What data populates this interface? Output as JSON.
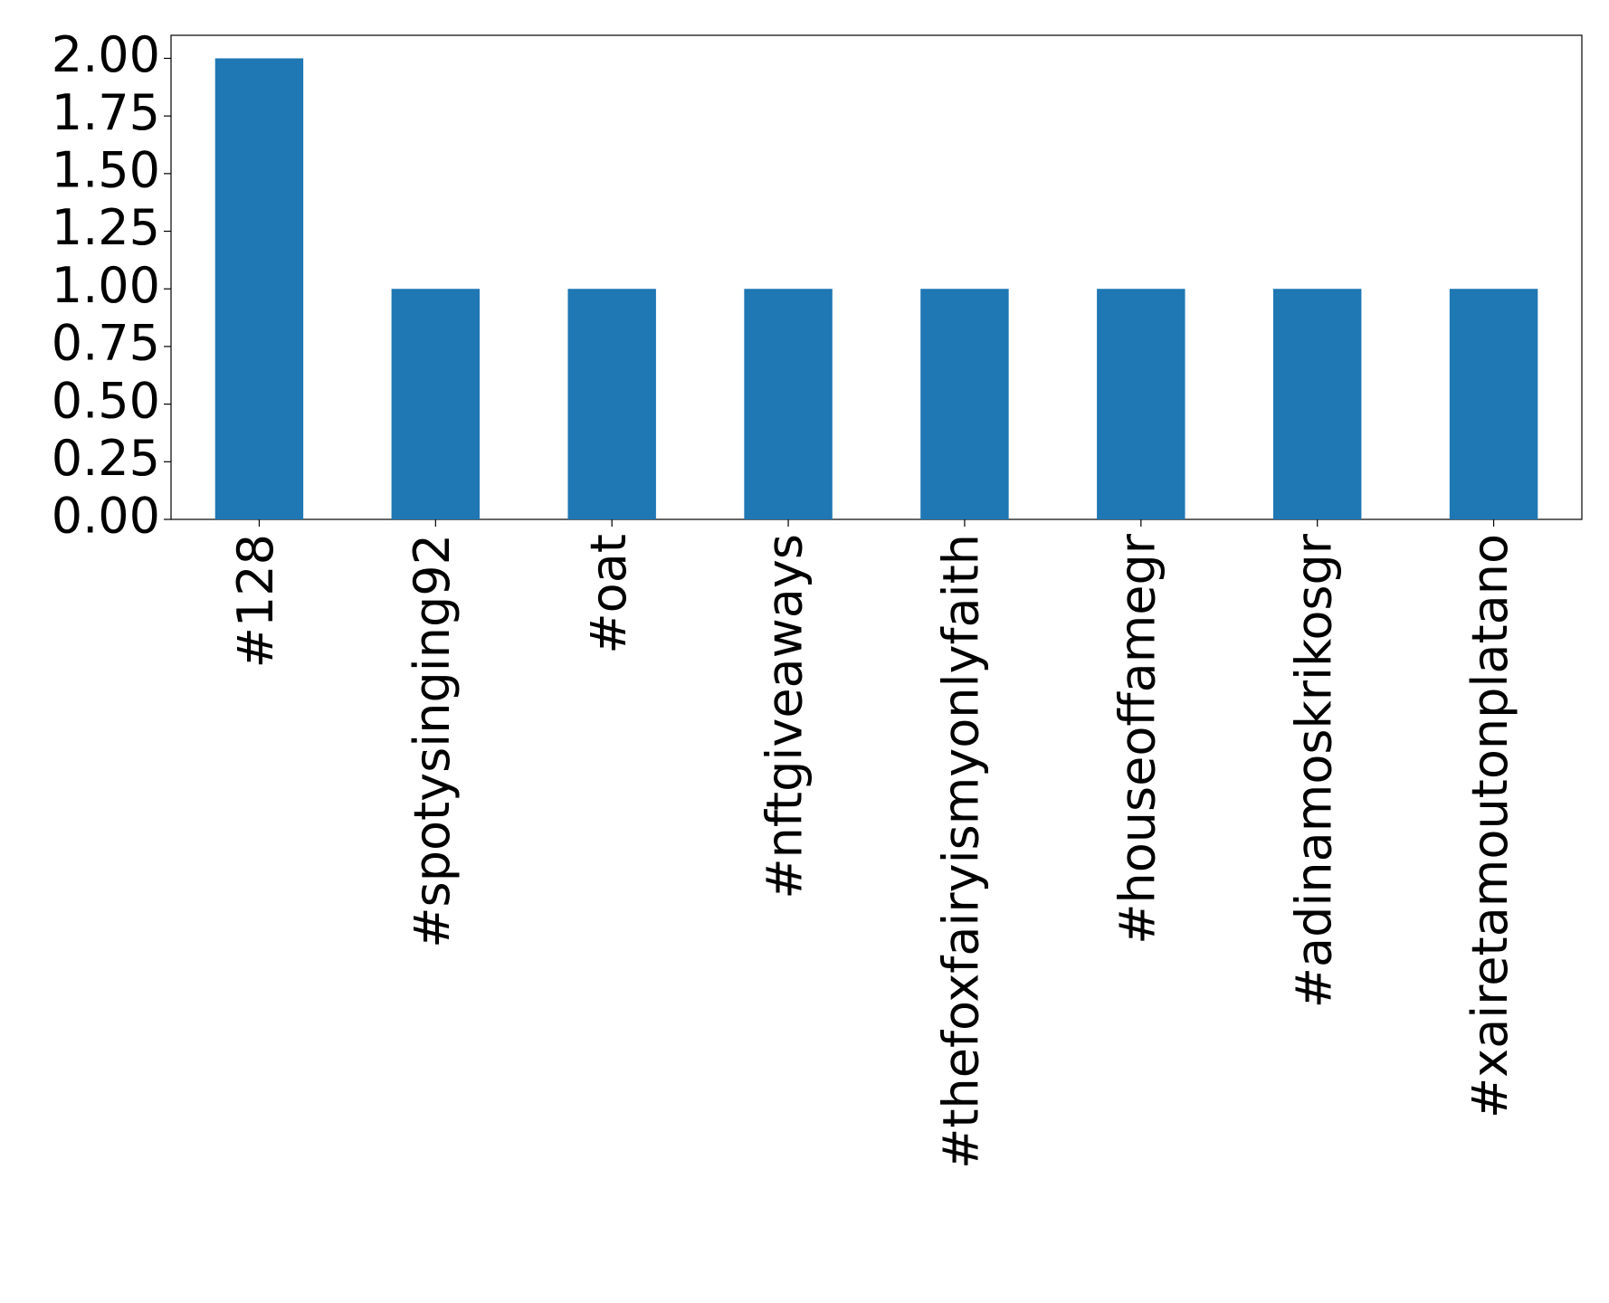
{
  "chart_data": {
    "type": "bar",
    "categories": [
      "#128",
      "#spotysinging92",
      "#oat",
      "#nftgiveaways",
      "#thefoxfairyismyonlyfaith",
      "#houseoffamegr",
      "#adinamoskrikosgr",
      "#xairetamoutonplatano"
    ],
    "values": [
      2,
      1,
      1,
      1,
      1,
      1,
      1,
      1
    ],
    "color": "#1f77b4",
    "ylim": [
      0,
      2.1
    ],
    "yticks": [
      {
        "value": 0,
        "label": "0.00"
      },
      {
        "value": 0.25,
        "label": "0.25"
      },
      {
        "value": 0.5,
        "label": "0.50"
      },
      {
        "value": 0.75,
        "label": "0.75"
      },
      {
        "value": 1,
        "label": "1.00"
      },
      {
        "value": 1.25,
        "label": "1.25"
      },
      {
        "value": 1.5,
        "label": "1.50"
      },
      {
        "value": 1.75,
        "label": "1.75"
      },
      {
        "value": 2,
        "label": "2.00"
      }
    ],
    "grid": false
  }
}
